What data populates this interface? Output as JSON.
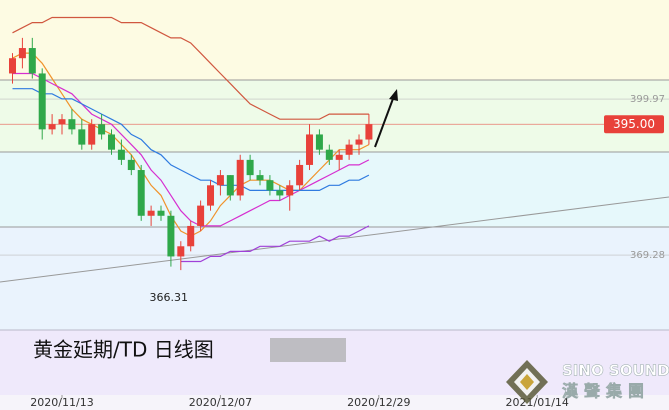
{
  "chart_data": {
    "type": "candlestick",
    "title": "黄金延期/TD  日线图",
    "watermark": {
      "brand": "SINO SOUND",
      "brand_cn": "漢聲集團"
    },
    "up_color": "#e8413a",
    "down_color": "#2fa84a",
    "x": [
      0,
      1,
      2,
      3,
      4,
      5,
      6,
      7,
      8,
      9,
      10,
      11,
      12,
      13,
      14,
      15,
      16,
      17,
      18,
      19,
      20,
      21,
      22,
      23,
      24,
      25,
      26,
      27,
      28,
      29,
      30,
      31,
      32,
      33,
      34,
      35,
      36
    ],
    "xlim": [
      -1.263,
      66.31
    ],
    "xticks": [
      {
        "value": 5,
        "label": "2020/11/13"
      },
      {
        "value": 21,
        "label": "2020/12/07"
      },
      {
        "value": 37,
        "label": "2020/12/29"
      },
      {
        "value": 53,
        "label": "2021/01/14"
      }
    ],
    "ylim": [
      338.79,
      419.45
    ],
    "yticks": [
      399.97,
      369.28
    ],
    "candles": {
      "open": [
        405,
        408,
        410,
        405,
        394,
        395,
        396,
        394,
        391,
        395,
        393,
        390,
        388,
        386,
        377,
        378,
        377,
        369,
        371,
        375,
        379,
        383,
        385,
        381,
        388,
        385,
        384,
        382,
        381,
        383,
        387,
        393,
        390,
        388,
        389,
        391,
        392
      ],
      "high": [
        409,
        412,
        412,
        406,
        397,
        397,
        398,
        396,
        396,
        397,
        394,
        392,
        389,
        387,
        379,
        379,
        378,
        372,
        376,
        380,
        384,
        386,
        385,
        389,
        389,
        386,
        385,
        383,
        384,
        388,
        395,
        394,
        391,
        390,
        392,
        393,
        397
      ],
      "low": [
        403,
        406,
        404,
        392,
        393,
        393,
        393,
        390,
        390,
        392,
        389,
        387,
        385,
        376,
        375,
        376,
        367,
        366.31,
        370,
        374,
        378,
        381,
        380,
        380,
        384,
        383,
        381,
        380,
        378,
        382,
        386,
        389,
        387,
        386,
        388,
        389,
        391
      ],
      "close": [
        408,
        410,
        405,
        394,
        395,
        396,
        394,
        391,
        395,
        393,
        390,
        388,
        386,
        377,
        378,
        377,
        369,
        371,
        375,
        379,
        383,
        385,
        381,
        388,
        385,
        384,
        382,
        381,
        383,
        387,
        393,
        390,
        388,
        389,
        391,
        392,
        395
      ]
    },
    "series": [
      {
        "name": "upper",
        "color": "#d0573f",
        "values": [
          413,
          414,
          415,
          415,
          416,
          416,
          416,
          416,
          416,
          416,
          416,
          415,
          415,
          415,
          414,
          413,
          412,
          412,
          411,
          409,
          407,
          405,
          403,
          401,
          399,
          398,
          397,
          396,
          396,
          396,
          396,
          396,
          397,
          397,
          397,
          397,
          397
        ]
      },
      {
        "name": "ma5",
        "color": "#f0932b",
        "values": [
          408,
          409,
          409,
          407,
          404,
          401,
          398,
          396,
          395,
          394,
          393,
          391,
          389,
          386,
          383,
          381,
          377,
          374,
          373,
          374,
          376,
          379,
          381,
          383,
          384,
          384,
          384,
          383,
          382,
          382,
          384,
          386,
          388,
          390,
          390,
          390,
          391
        ]
      },
      {
        "name": "ma10",
        "color": "#d62fd0",
        "values": [
          405,
          405,
          405,
          404,
          403,
          402,
          401,
          399,
          397,
          396,
          395,
          393,
          391,
          389,
          386,
          384,
          381,
          378,
          376,
          375,
          375,
          375,
          376,
          377,
          378,
          379,
          380,
          380,
          381,
          382,
          383,
          384,
          385,
          386,
          387,
          387,
          388
        ]
      },
      {
        "name": "ma20",
        "color": "#2f7be0",
        "values": [
          402,
          402,
          402,
          401,
          401,
          400,
          400,
          399,
          398,
          397,
          396,
          395,
          393,
          392,
          390,
          389,
          387,
          386,
          385,
          384,
          384,
          383,
          383,
          383,
          382,
          382,
          382,
          382,
          382,
          382,
          382,
          382,
          383,
          383,
          384,
          384,
          385
        ]
      },
      {
        "name": "lower",
        "color": "#a040d8",
        "values": [
          null,
          null,
          null,
          null,
          null,
          null,
          null,
          null,
          null,
          null,
          null,
          null,
          null,
          null,
          null,
          null,
          null,
          368,
          368,
          368,
          369,
          369,
          370,
          370,
          370,
          371,
          371,
          371,
          372,
          372,
          372,
          373,
          372,
          373,
          373,
          374,
          375
        ]
      }
    ],
    "last_price": {
      "value": 395,
      "label": "395.00"
    },
    "trendline": {
      "values": [
        363.97,
        380.7
      ]
    }
  }
}
